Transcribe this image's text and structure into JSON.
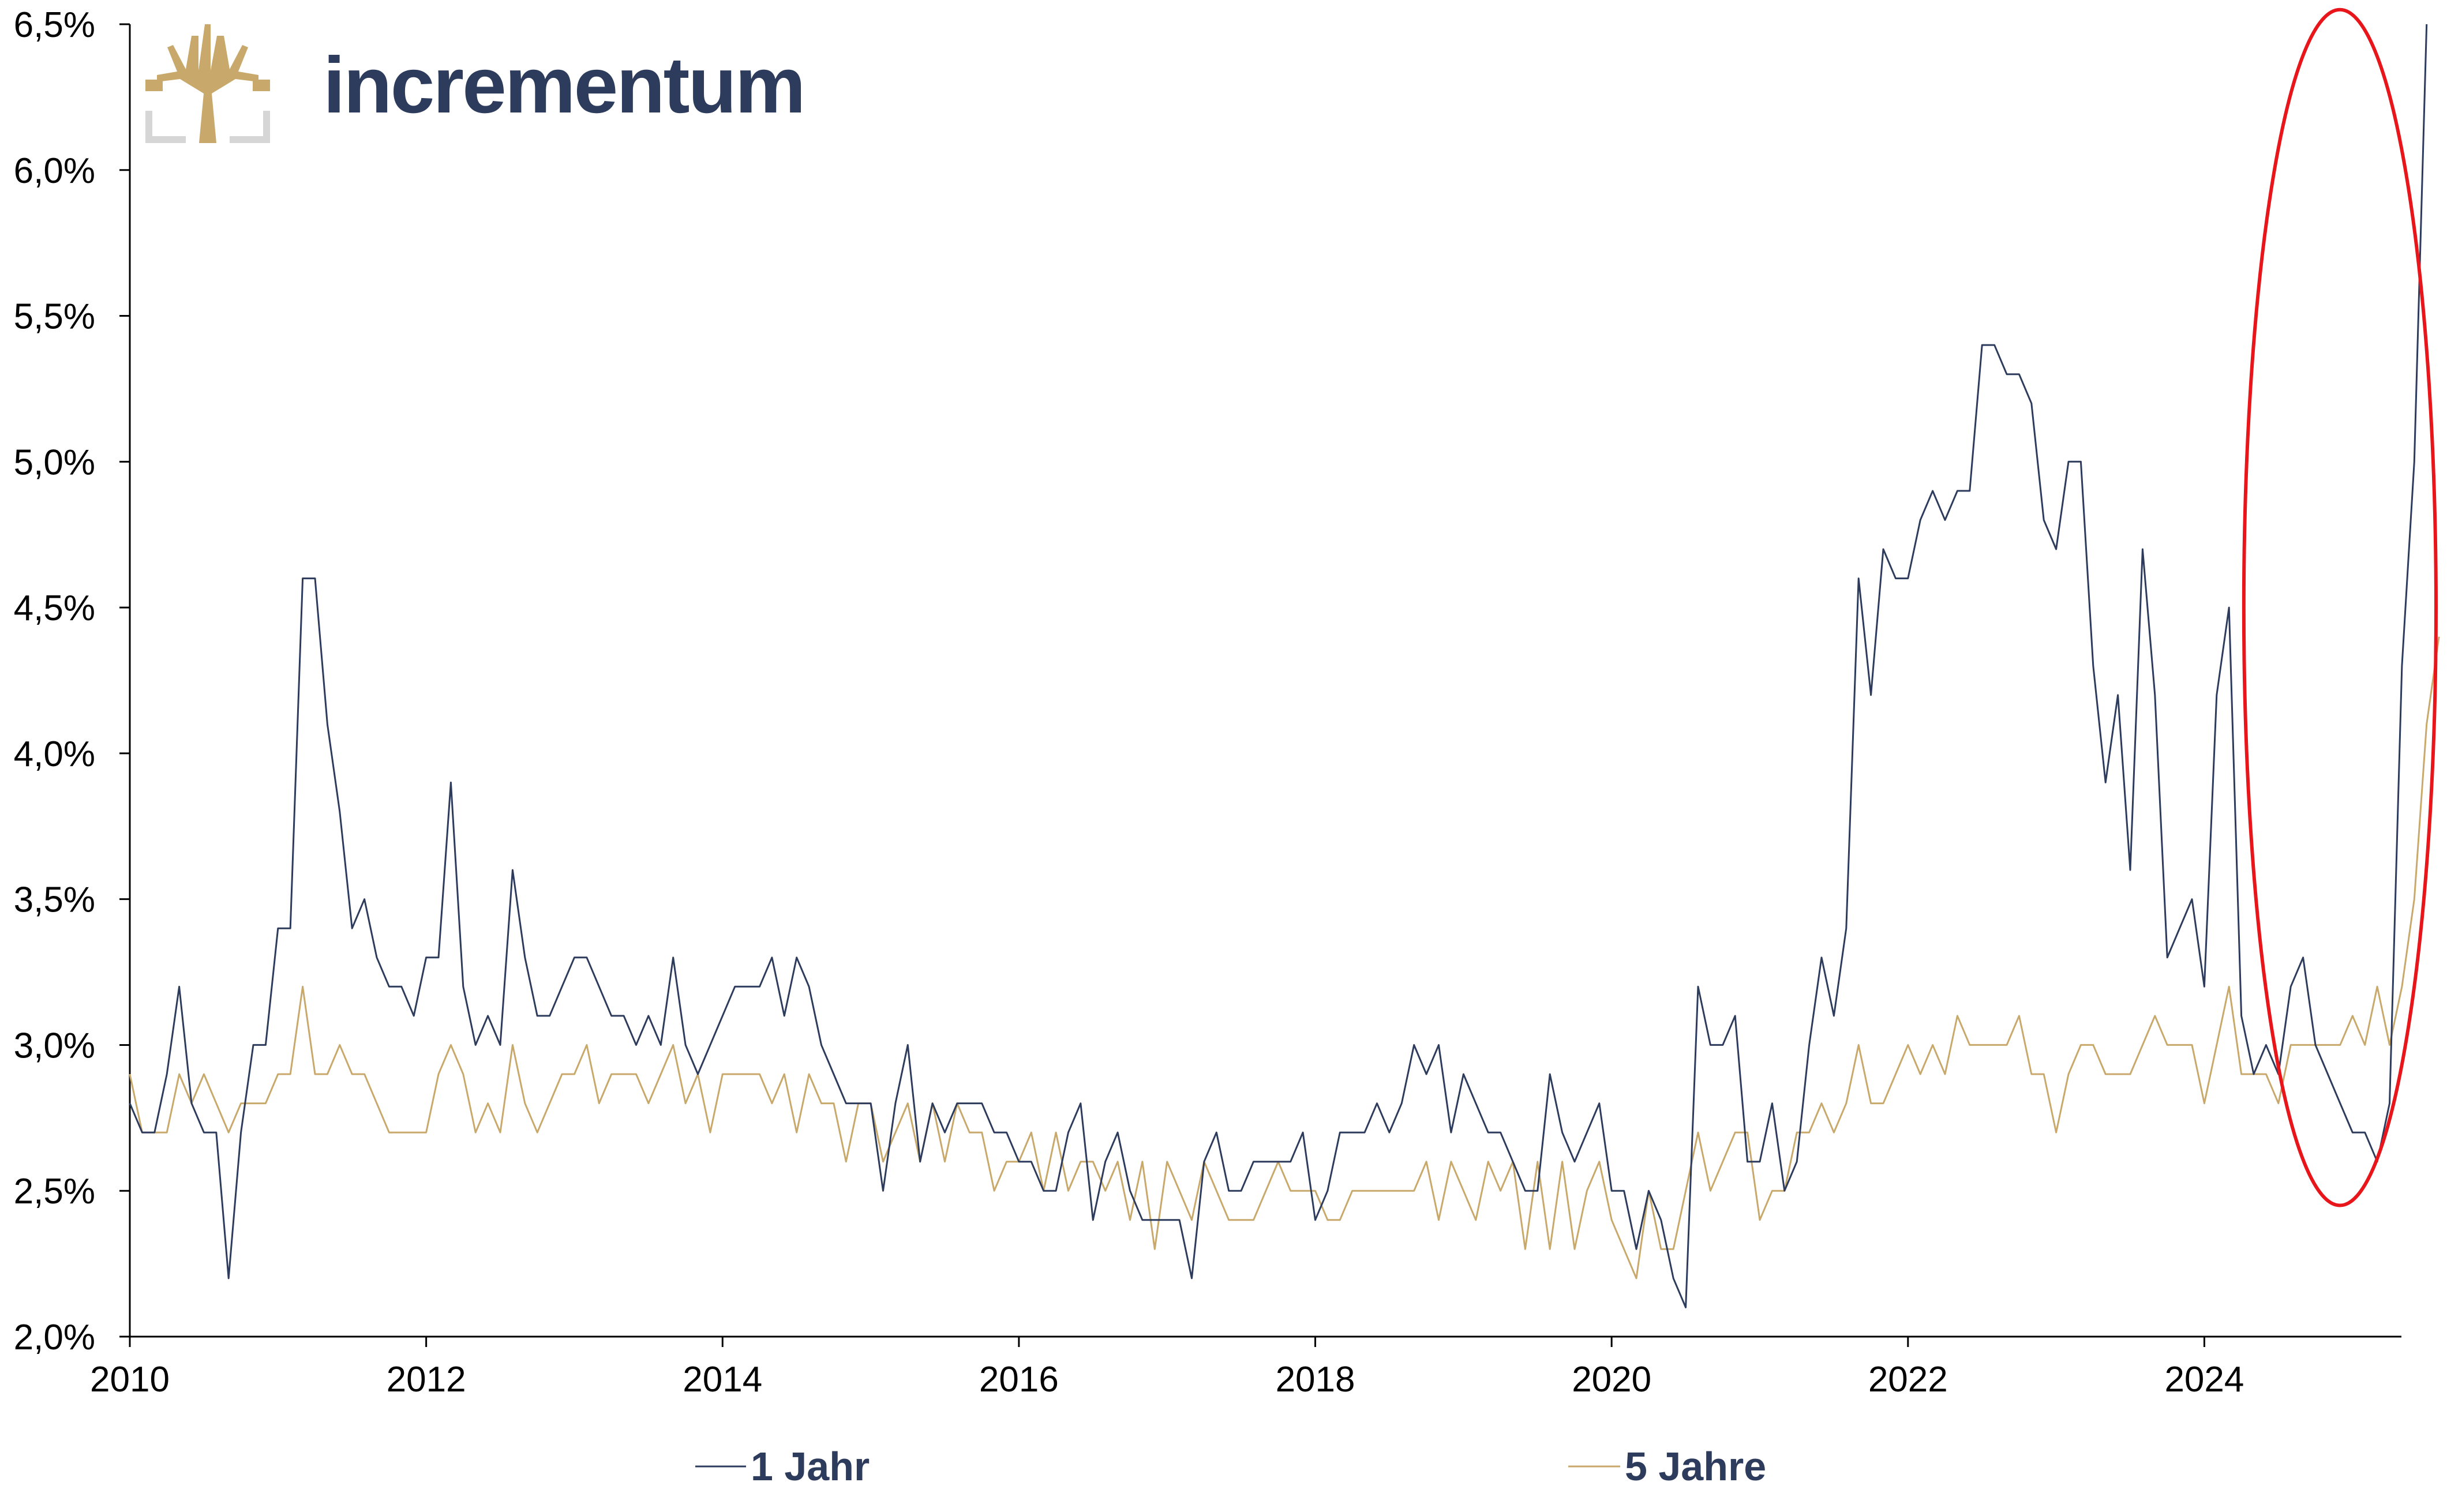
{
  "brand": {
    "name": "incrementum",
    "logo_icon": "tree-logo-icon"
  },
  "colors": {
    "series_1": "#2d3b5c",
    "series_2": "#c8a96b",
    "highlight": "#e8161b",
    "brand_gold": "#c8a96b",
    "brand_navy": "#2d3b5c",
    "axis": "#000000"
  },
  "chart_data": {
    "type": "line",
    "title": "",
    "xlabel": "",
    "ylabel": "",
    "xlim": [
      2010,
      2025.33
    ],
    "ylim": [
      2.0,
      6.5
    ],
    "x_ticks": [
      2010,
      2012,
      2014,
      2016,
      2018,
      2020,
      2022,
      2024
    ],
    "x_tick_labels": [
      "2010",
      "2012",
      "2014",
      "2016",
      "2018",
      "2020",
      "2022",
      "2024"
    ],
    "y_ticks": [
      2.0,
      2.5,
      3.0,
      3.5,
      4.0,
      4.5,
      5.0,
      5.5,
      6.0,
      6.5
    ],
    "y_tick_labels": [
      "2,0%",
      "2,5%",
      "3,0%",
      "3,5%",
      "4,0%",
      "4,5%",
      "5,0%",
      "5,5%",
      "6,0%",
      "6,5%"
    ],
    "grid": false,
    "legend_position": "bottom",
    "frequency": "monthly",
    "start": "2010-01",
    "series": [
      {
        "name": "1 Jahr",
        "color": "#2d3b5c",
        "values": [
          2.8,
          2.7,
          2.7,
          2.9,
          3.2,
          2.8,
          2.7,
          2.7,
          2.2,
          2.7,
          3.0,
          3.0,
          3.4,
          3.4,
          4.6,
          4.6,
          4.1,
          3.8,
          3.4,
          3.5,
          3.3,
          3.2,
          3.2,
          3.1,
          3.3,
          3.3,
          3.9,
          3.2,
          3.0,
          3.1,
          3.0,
          3.6,
          3.3,
          3.1,
          3.1,
          3.2,
          3.3,
          3.3,
          3.2,
          3.1,
          3.1,
          3.0,
          3.1,
          3.0,
          3.3,
          3.0,
          2.9,
          3.0,
          3.1,
          3.2,
          3.2,
          3.2,
          3.3,
          3.1,
          3.3,
          3.2,
          3.0,
          2.9,
          2.8,
          2.8,
          2.8,
          2.5,
          2.8,
          3.0,
          2.6,
          2.8,
          2.7,
          2.8,
          2.8,
          2.8,
          2.7,
          2.7,
          2.6,
          2.6,
          2.5,
          2.5,
          2.7,
          2.8,
          2.4,
          2.6,
          2.7,
          2.5,
          2.4,
          2.4,
          2.4,
          2.4,
          2.2,
          2.6,
          2.7,
          2.5,
          2.5,
          2.6,
          2.6,
          2.6,
          2.6,
          2.7,
          2.4,
          2.5,
          2.7,
          2.7,
          2.7,
          2.8,
          2.7,
          2.8,
          3.0,
          2.9,
          3.0,
          2.7,
          2.9,
          2.8,
          2.7,
          2.7,
          2.6,
          2.5,
          2.5,
          2.9,
          2.7,
          2.6,
          2.7,
          2.8,
          2.5,
          2.5,
          2.3,
          2.5,
          2.4,
          2.2,
          2.1,
          3.2,
          3.0,
          3.0,
          3.1,
          2.6,
          2.6,
          2.8,
          2.5,
          2.6,
          3.0,
          3.3,
          3.1,
          3.4,
          4.6,
          4.2,
          4.7,
          4.6,
          4.6,
          4.8,
          4.9,
          4.8,
          4.9,
          4.9,
          5.4,
          5.4,
          5.3,
          5.3,
          5.2,
          4.8,
          4.7,
          5.0,
          5.0,
          4.3,
          3.9,
          4.2,
          3.6,
          4.7,
          4.2,
          3.3,
          3.4,
          3.5,
          3.2,
          4.2,
          4.5,
          3.1,
          2.9,
          3.0,
          2.9,
          3.2,
          3.3,
          3.0,
          2.9,
          2.8,
          2.7,
          2.7,
          2.6,
          2.8,
          4.3,
          5.0,
          6.5
        ]
      },
      {
        "name": "5 Jahre",
        "color": "#c8a96b",
        "values": [
          2.9,
          2.7,
          2.7,
          2.7,
          2.9,
          2.8,
          2.9,
          2.8,
          2.7,
          2.8,
          2.8,
          2.8,
          2.9,
          2.9,
          3.2,
          2.9,
          2.9,
          3.0,
          2.9,
          2.9,
          2.8,
          2.7,
          2.7,
          2.7,
          2.7,
          2.9,
          3.0,
          2.9,
          2.7,
          2.8,
          2.7,
          3.0,
          2.8,
          2.7,
          2.8,
          2.9,
          2.9,
          3.0,
          2.8,
          2.9,
          2.9,
          2.9,
          2.8,
          2.9,
          3.0,
          2.8,
          2.9,
          2.7,
          2.9,
          2.9,
          2.9,
          2.9,
          2.8,
          2.9,
          2.7,
          2.9,
          2.8,
          2.8,
          2.6,
          2.8,
          2.8,
          2.6,
          2.7,
          2.8,
          2.6,
          2.8,
          2.6,
          2.8,
          2.7,
          2.7,
          2.5,
          2.6,
          2.6,
          2.7,
          2.5,
          2.7,
          2.5,
          2.6,
          2.6,
          2.5,
          2.6,
          2.4,
          2.6,
          2.3,
          2.6,
          2.5,
          2.4,
          2.6,
          2.5,
          2.4,
          2.4,
          2.4,
          2.5,
          2.6,
          2.5,
          2.5,
          2.5,
          2.4,
          2.4,
          2.5,
          2.5,
          2.5,
          2.5,
          2.5,
          2.5,
          2.6,
          2.4,
          2.6,
          2.5,
          2.4,
          2.6,
          2.5,
          2.6,
          2.3,
          2.6,
          2.3,
          2.6,
          2.3,
          2.5,
          2.6,
          2.4,
          2.3,
          2.2,
          2.5,
          2.3,
          2.3,
          2.5,
          2.7,
          2.5,
          2.6,
          2.7,
          2.7,
          2.4,
          2.5,
          2.5,
          2.7,
          2.7,
          2.8,
          2.7,
          2.8,
          3.0,
          2.8,
          2.8,
          2.9,
          3.0,
          2.9,
          3.0,
          2.9,
          3.1,
          3.0,
          3.0,
          3.0,
          3.0,
          3.1,
          2.9,
          2.9,
          2.7,
          2.9,
          3.0,
          3.0,
          2.9,
          2.9,
          2.9,
          3.0,
          3.1,
          3.0,
          3.0,
          3.0,
          2.8,
          3.0,
          3.2,
          2.9,
          2.9,
          2.9,
          2.8,
          3.0,
          3.0,
          3.0,
          3.0,
          3.0,
          3.1,
          3.0,
          3.2,
          3.0,
          3.2,
          3.5,
          4.1,
          4.4
        ]
      }
    ],
    "annotations": [
      {
        "type": "ellipse",
        "label": "",
        "color": "#e8161b",
        "x_range": [
          2024.5,
          2025.33
        ],
        "y_range": [
          2.45,
          6.55
        ]
      }
    ]
  }
}
